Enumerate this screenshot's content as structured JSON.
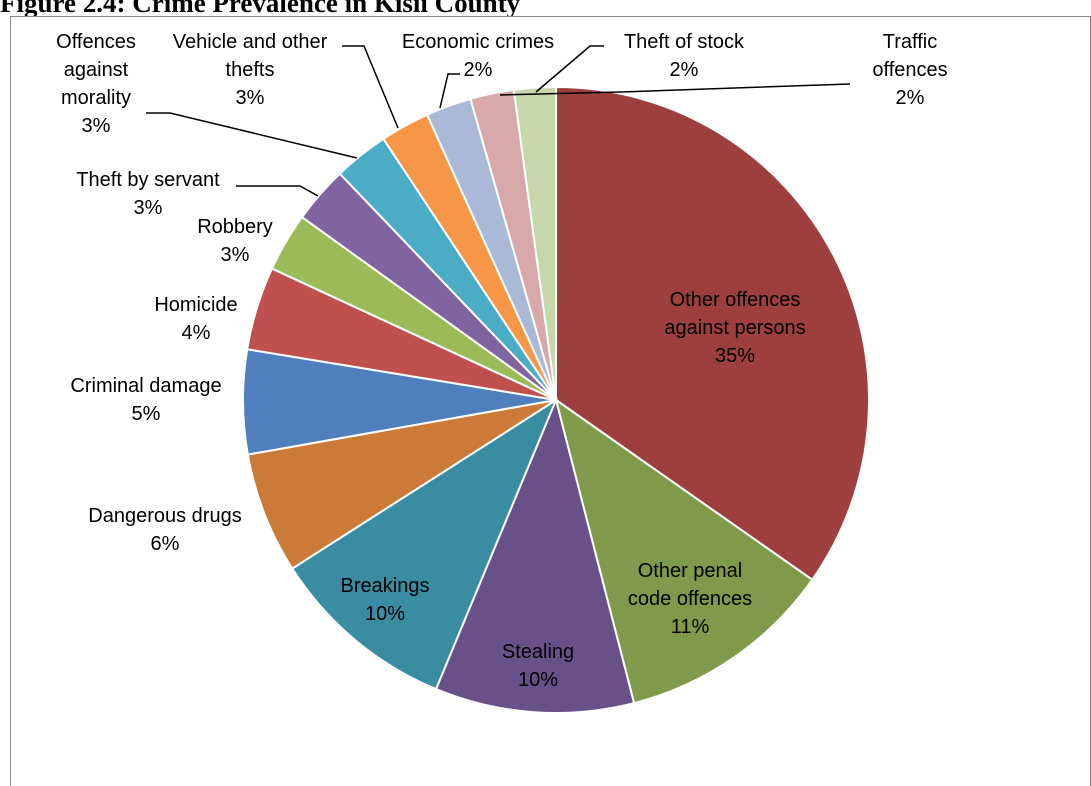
{
  "caption": "Figure 2.4: Crime Prevalence in Kisii County",
  "chart_data": {
    "type": "pie",
    "title": "Figure 2.4: Crime Prevalence in Kisii County",
    "unit": "%",
    "legend": "none (labels on chart)",
    "slices": [
      {
        "name": "Other offences against persons",
        "label_lines": [
          "Other offences",
          "against persons"
        ],
        "pct_label": "35%",
        "value": 35.5,
        "color": "#9c3f3e"
      },
      {
        "name": "Other penal code offences",
        "label_lines": [
          "Other penal",
          "code offences"
        ],
        "pct_label": "11%",
        "value": 11.5,
        "color": "#7f9a4b"
      },
      {
        "name": "Stealing",
        "label_lines": [
          "Stealing"
        ],
        "pct_label": "10%",
        "value": 10.5,
        "color": "#6a5088"
      },
      {
        "name": "Breakings",
        "label_lines": [
          "Breakings"
        ],
        "pct_label": "10%",
        "value": 9.9,
        "color": "#3a8ca3"
      },
      {
        "name": "Dangerous drugs",
        "label_lines": [
          "Dangerous drugs"
        ],
        "pct_label": "6%",
        "value": 6.4,
        "color": "#cc7a38"
      },
      {
        "name": "Criminal damage",
        "label_lines": [
          "Criminal damage"
        ],
        "pct_label": "5%",
        "value": 5.5,
        "color": "#4f80bd"
      },
      {
        "name": "Homicide",
        "label_lines": [
          "Homicide"
        ],
        "pct_label": "4%",
        "value": 4.4,
        "color": "#c0504d"
      },
      {
        "name": "Robbery",
        "label_lines": [
          "Robbery"
        ],
        "pct_label": "3%",
        "value": 3.1,
        "color": "#9bbb59"
      },
      {
        "name": "Theft by servant",
        "label_lines": [
          "Theft by servant"
        ],
        "pct_label": "3%",
        "value": 3.0,
        "color": "#8064a2"
      },
      {
        "name": "Offences against morality",
        "label_lines": [
          "Offences",
          "against",
          "morality"
        ],
        "pct_label": "3%",
        "value": 2.9,
        "color": "#4bacc6"
      },
      {
        "name": "Vehicle and other thefts",
        "label_lines": [
          "Vehicle and other",
          "thefts"
        ],
        "pct_label": "3%",
        "value": 2.6,
        "color": "#f79646"
      },
      {
        "name": "Economic crimes",
        "label_lines": [
          "Economic crimes"
        ],
        "pct_label": "2%",
        "value": 2.4,
        "color": "#aab9d8"
      },
      {
        "name": "Theft of stock",
        "label_lines": [
          "Theft of stock"
        ],
        "pct_label": "2%",
        "value": 2.3,
        "color": "#d9a8a8"
      },
      {
        "name": "Traffic offences",
        "label_lines": [
          "Traffic",
          "offences"
        ],
        "pct_label": "2%",
        "value": 2.2,
        "color": "#c6d8ab"
      }
    ]
  }
}
